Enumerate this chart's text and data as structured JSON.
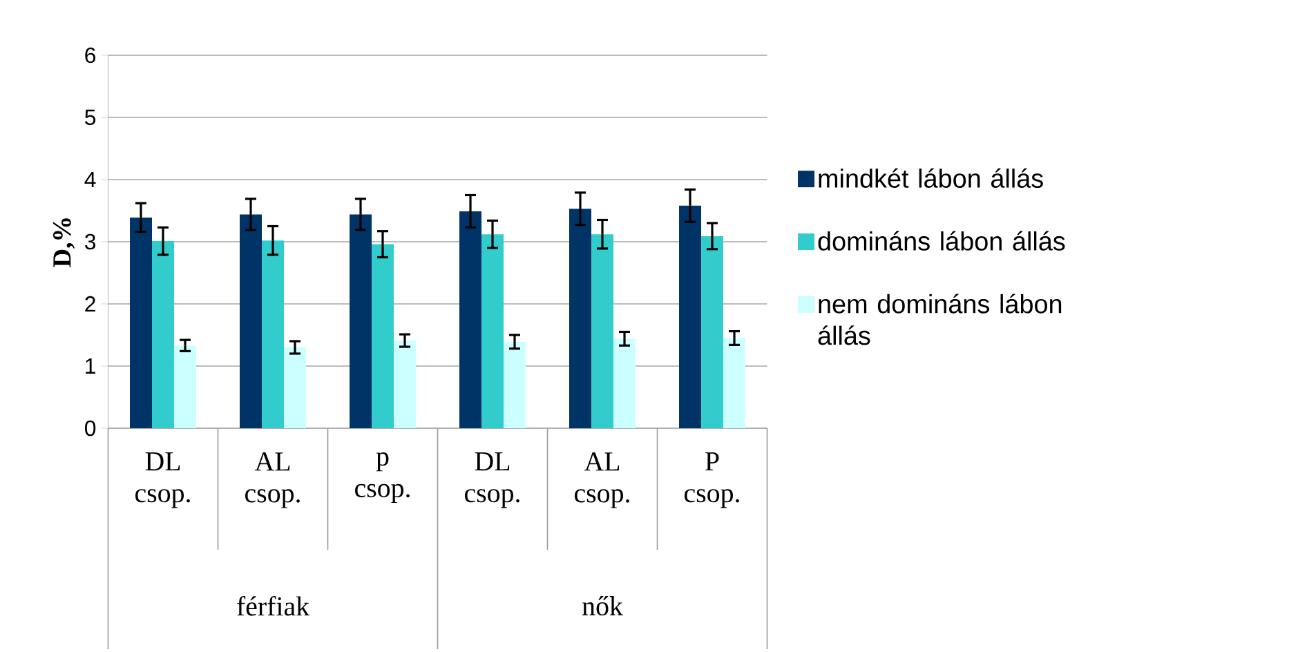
{
  "chart_data": {
    "type": "bar",
    "ylabel": "D,%",
    "categories": [
      "DL csop.",
      "AL csop.",
      "p csop.",
      "DL csop.",
      "AL csop.",
      "P csop."
    ],
    "annotations": [
      "férfiak",
      "nők"
    ],
    "series": [
      {
        "name": "mindkét lábon állás",
        "color": "#003366",
        "values": [
          3.39,
          3.44,
          3.44,
          3.49,
          3.53,
          3.58
        ],
        "errors": [
          0.23,
          0.25,
          0.25,
          0.26,
          0.26,
          0.26
        ]
      },
      {
        "name": "domináns lábon állás",
        "color": "#33cccc",
        "values": [
          3.01,
          3.02,
          2.96,
          3.12,
          3.12,
          3.09
        ],
        "errors": [
          0.22,
          0.23,
          0.21,
          0.22,
          0.23,
          0.21
        ]
      },
      {
        "name": "nem domináns lábon állás",
        "color": "#ccffff",
        "values": [
          1.33,
          1.3,
          1.41,
          1.39,
          1.44,
          1.45
        ],
        "errors": [
          0.09,
          0.1,
          0.1,
          0.11,
          0.11,
          0.11
        ]
      }
    ],
    "ylim": [
      0,
      6
    ],
    "yticks": [
      0,
      1,
      2,
      3,
      4,
      5,
      6
    ],
    "grid": "y",
    "legend": "right"
  }
}
